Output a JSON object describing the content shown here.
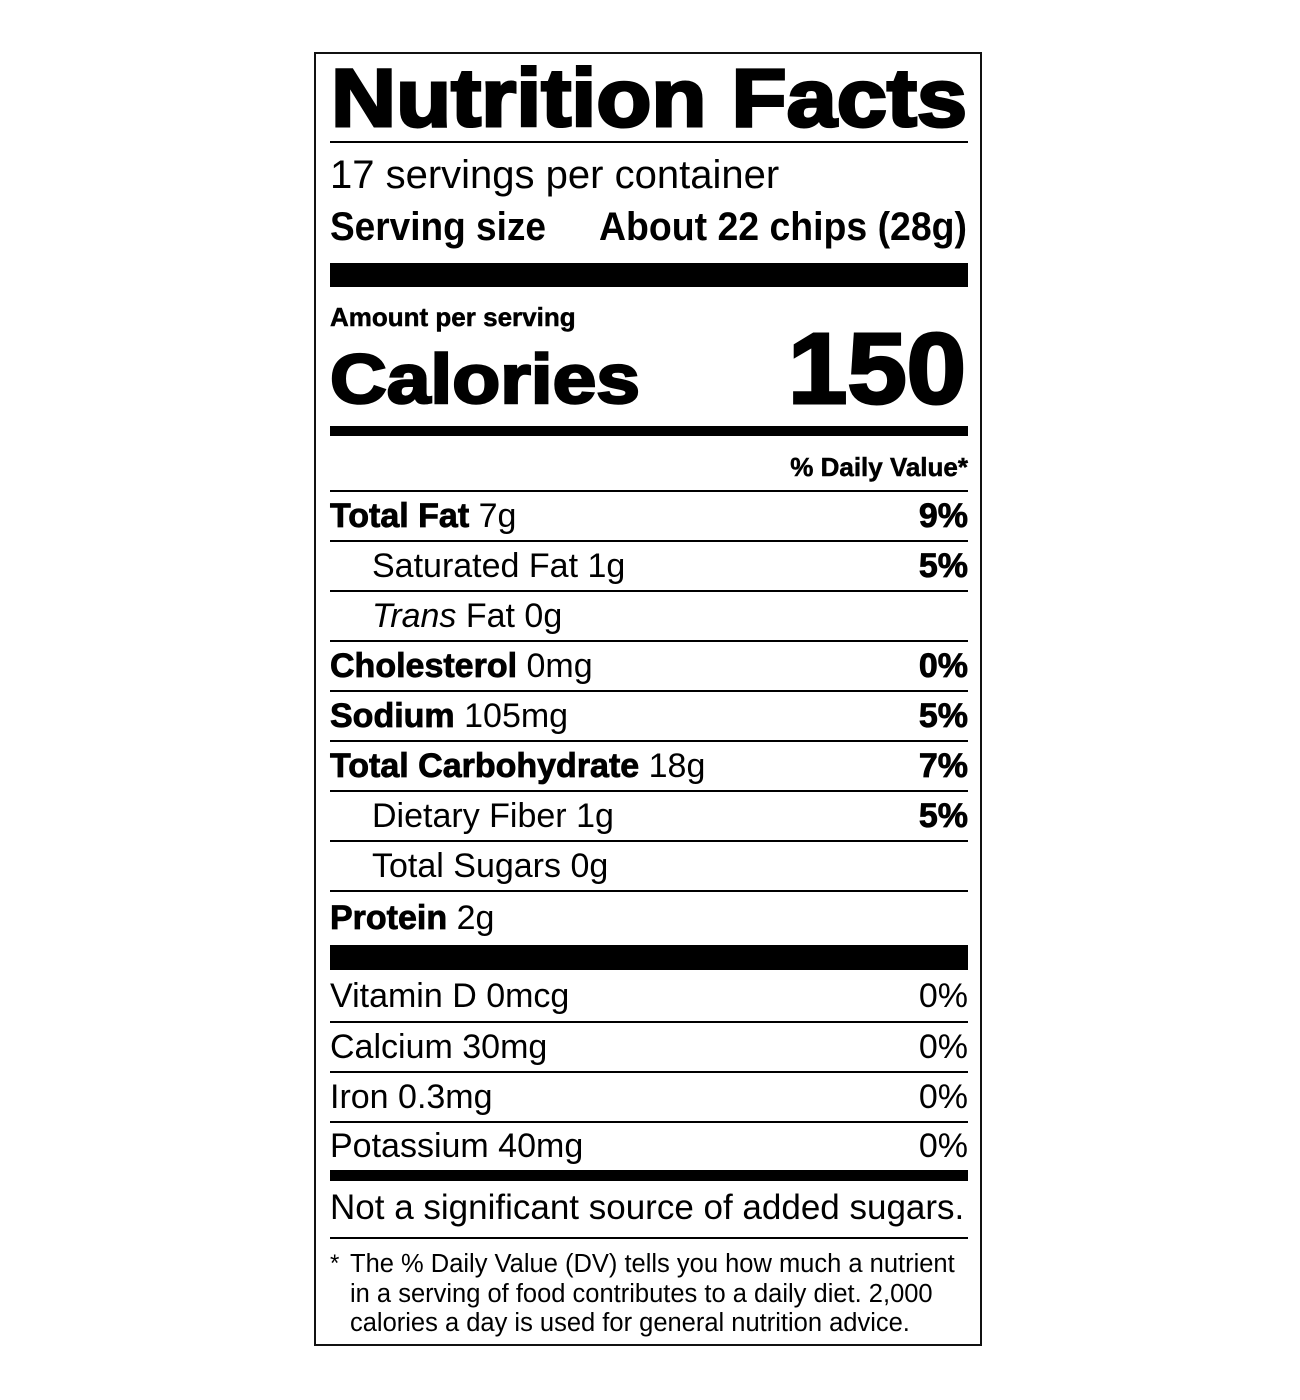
{
  "title": "Nutrition Facts",
  "servings_per_container": "17 servings per container",
  "serving_size_label": "Serving size",
  "serving_size_value": "About 22 chips (28g)",
  "amount_per_serving": "Amount per serving",
  "calories_label": "Calories",
  "calories_value": "150",
  "daily_value_header": "% Daily Value*",
  "nutrients": [
    {
      "name": "Total Fat",
      "amount": "7g",
      "dv": "9%"
    },
    {
      "name": "Saturated Fat",
      "amount": "1g",
      "dv": "5%"
    },
    {
      "name": "Trans",
      "name_suffix": "Fat",
      "amount": "0g",
      "dv": ""
    },
    {
      "name": "Cholesterol",
      "amount": "0mg",
      "dv": "0%"
    },
    {
      "name": "Sodium",
      "amount": "105mg",
      "dv": "5%"
    },
    {
      "name": "Total Carbohydrate",
      "amount": "18g",
      "dv": "7%"
    },
    {
      "name": "Dietary Fiber",
      "amount": "1g",
      "dv": "5%"
    },
    {
      "name": "Total Sugars",
      "amount": "0g",
      "dv": ""
    },
    {
      "name": "Protein",
      "amount": "2g",
      "dv": ""
    }
  ],
  "vitamins": [
    {
      "label": "Vitamin D 0mcg",
      "dv": "0%"
    },
    {
      "label": "Calcium 30mg",
      "dv": "0%"
    },
    {
      "label": "Iron 0.3mg",
      "dv": "0%"
    },
    {
      "label": "Potassium 40mg",
      "dv": "0%"
    }
  ],
  "added_sugars_note": "Not a significant source of added sugars.",
  "footnote_star": "*",
  "footnote_lines": [
    "The % Daily Value (DV) tells you how much a nutrient",
    "in a serving of food contributes to a daily diet. 2,000",
    "calories a day is used for general nutrition advice."
  ]
}
